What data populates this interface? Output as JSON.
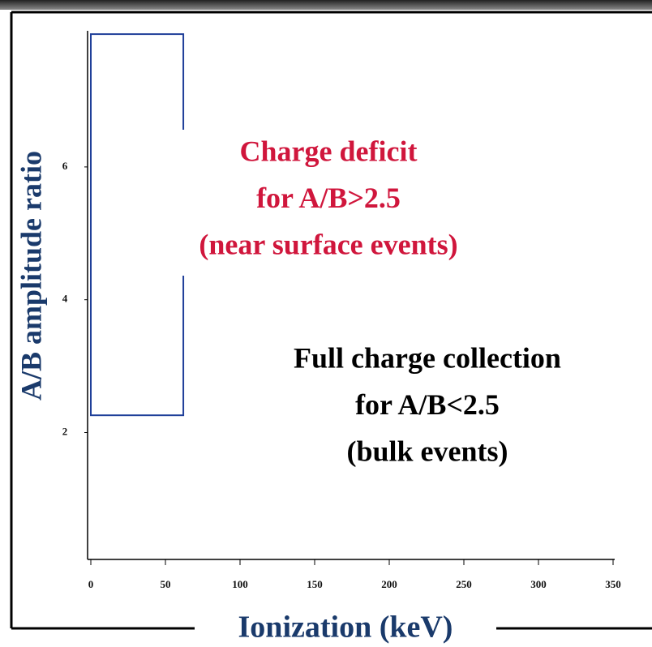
{
  "chart_data": {
    "type": "region",
    "xlabel": "Ionization (keV)",
    "ylabel": "A/B amplitude ratio",
    "xlim": [
      0,
      350
    ],
    "xticks": [
      0,
      50,
      100,
      150,
      200,
      250,
      300,
      350
    ],
    "ylim": [
      0.15,
      8.05
    ],
    "yticks": [
      2,
      4,
      6
    ],
    "region": {
      "x": [
        0,
        62
      ],
      "y": [
        2.26,
        8.0
      ],
      "color": "#1f3f99"
    },
    "annotations": [
      {
        "lines": [
          "Charge deficit",
          "for A/B>2.5",
          "(near surface events)"
        ],
        "color": "#d0163c"
      },
      {
        "lines": [
          "Full charge collection",
          "for A/B<2.5",
          "(bulk events)"
        ],
        "color": "#000000"
      }
    ]
  }
}
